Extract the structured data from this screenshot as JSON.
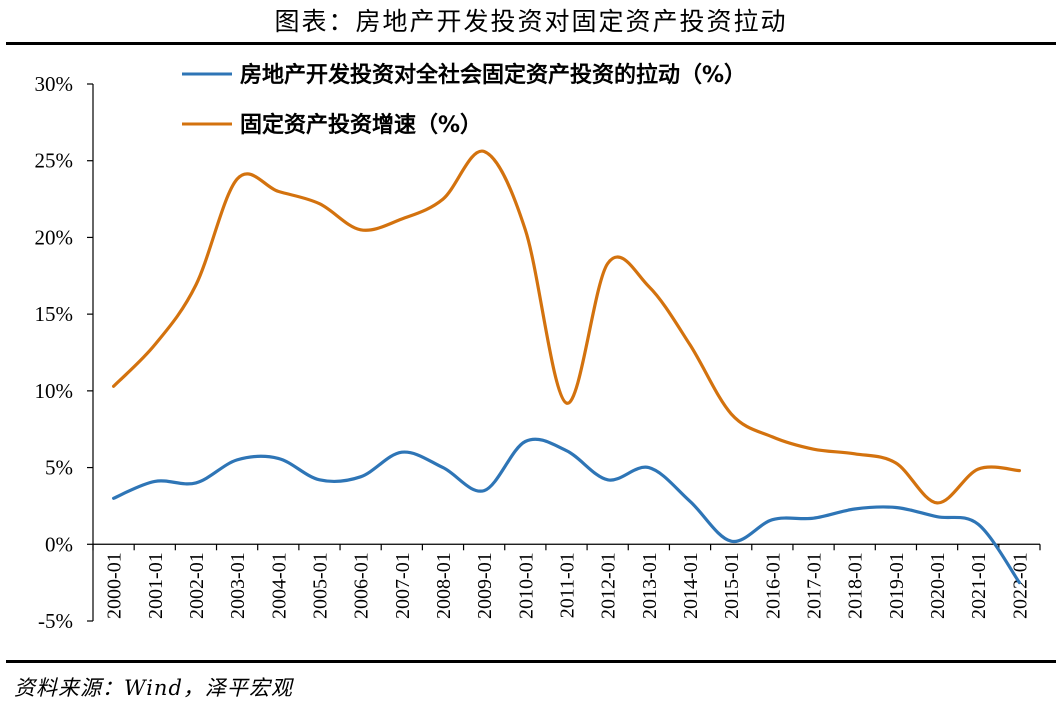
{
  "title": "图表：房地产开发投资对固定资产投资拉动",
  "source": "资料来源：Wind，泽平宏观",
  "colors": {
    "series1": "#2E75B6",
    "series2": "#D3720E",
    "axis": "#000000"
  },
  "chart_data": {
    "type": "line",
    "title": "图表：房地产开发投资对固定资产投资拉动",
    "x": [
      "2000-01",
      "2001-01",
      "2002-01",
      "2003-01",
      "2004-01",
      "2005-01",
      "2006-01",
      "2007-01",
      "2008-01",
      "2009-01",
      "2010-01",
      "2011-01",
      "2012-01",
      "2013-01",
      "2014-01",
      "2015-01",
      "2016-01",
      "2017-01",
      "2018-01",
      "2019-01",
      "2020-01",
      "2021-01",
      "2022-01"
    ],
    "ylim": [
      -5,
      30
    ],
    "yticks": [
      "-5%",
      "0%",
      "5%",
      "10%",
      "15%",
      "20%",
      "25%",
      "30%"
    ],
    "ytick_values": [
      -5,
      0,
      5,
      10,
      15,
      20,
      25,
      30
    ],
    "legend_position": "top",
    "grid": false,
    "series": [
      {
        "name": "房地产开发投资对全社会固定资产投资的拉动（%）",
        "values": [
          3.0,
          4.1,
          4.0,
          5.5,
          5.6,
          4.2,
          4.4,
          6.0,
          5.0,
          3.5,
          6.7,
          6.1,
          4.2,
          5.0,
          2.8,
          0.2,
          1.6,
          1.7,
          2.3,
          2.4,
          1.8,
          1.3,
          -2.5
        ]
      },
      {
        "name": "固定资产投资增速（%）",
        "values": [
          10.3,
          13.0,
          16.9,
          23.8,
          23.0,
          22.2,
          20.5,
          21.2,
          22.5,
          25.6,
          20.5,
          9.2,
          18.3,
          16.8,
          13.0,
          8.5,
          7.0,
          6.2,
          5.9,
          5.3,
          2.7,
          4.9,
          4.8
        ]
      }
    ]
  }
}
